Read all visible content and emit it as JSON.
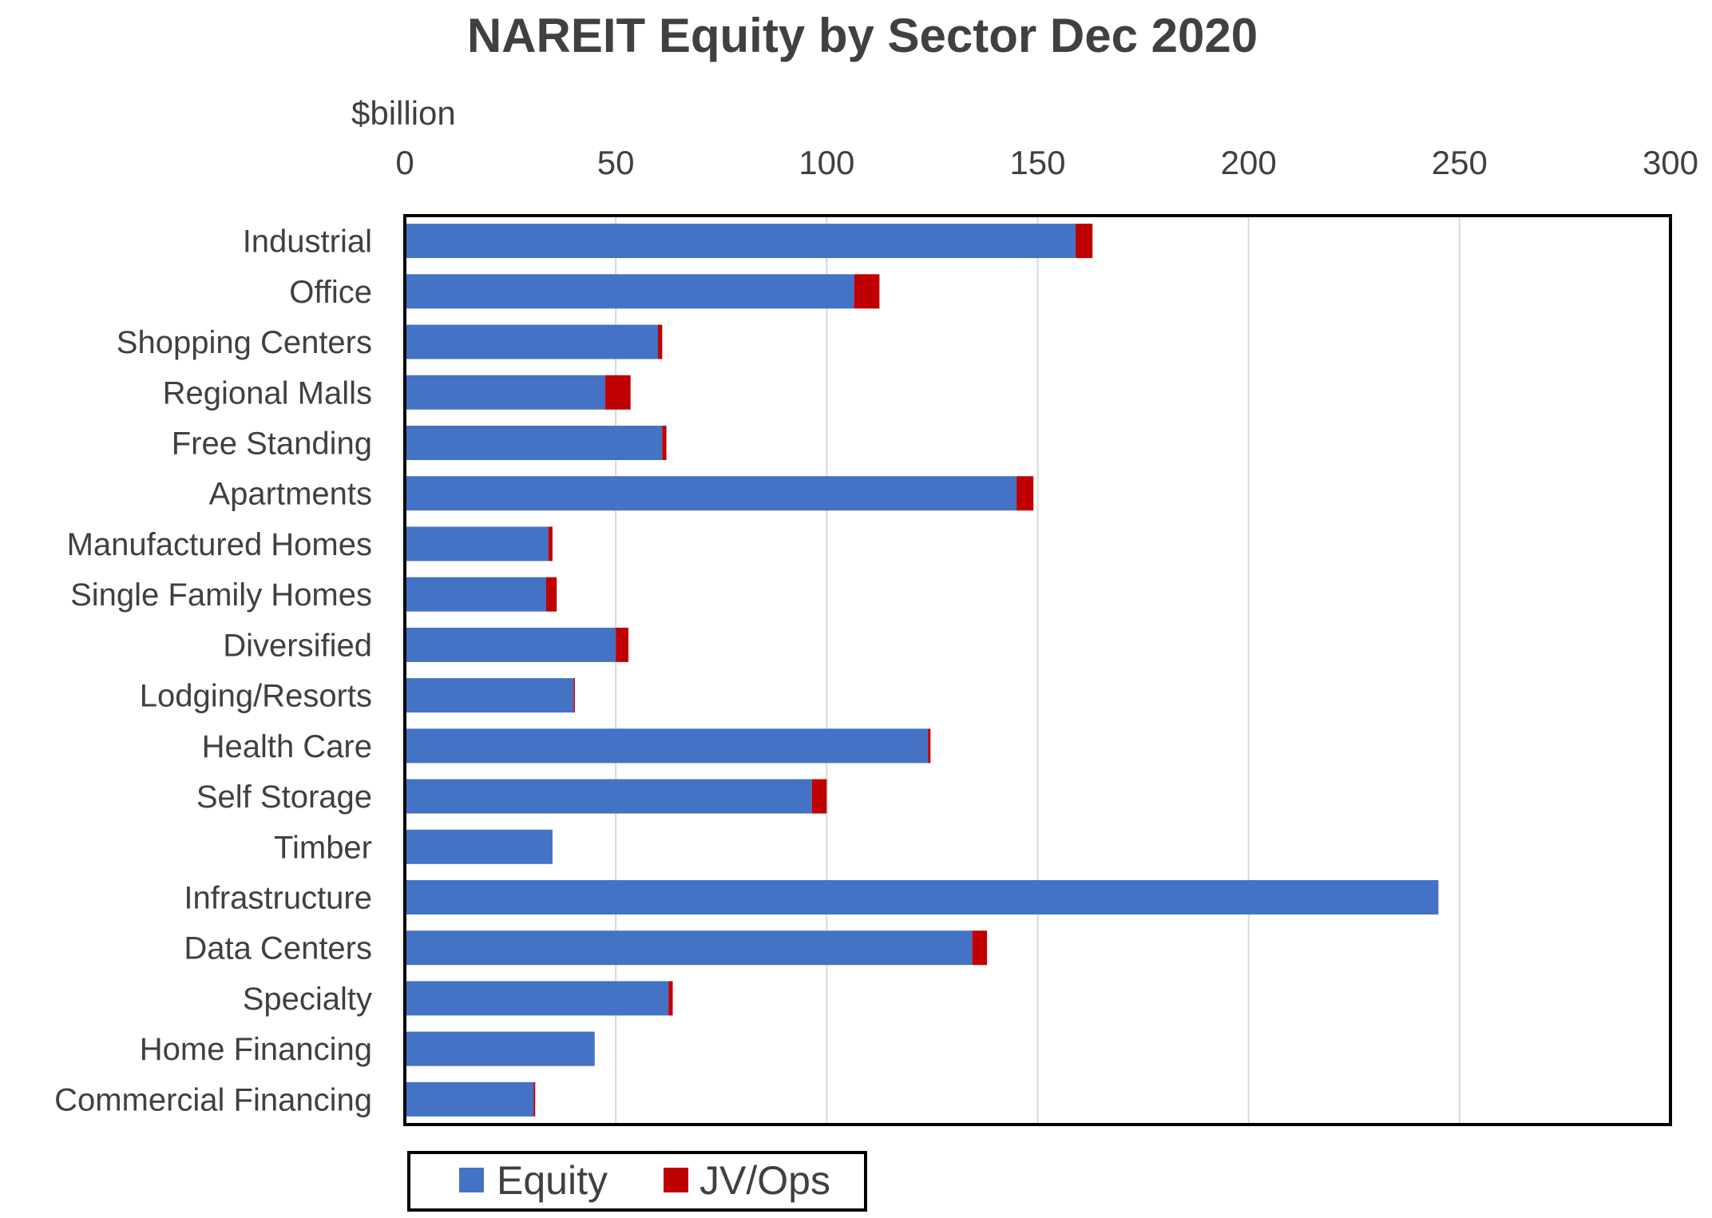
{
  "chart_data": {
    "type": "bar",
    "orientation": "horizontal",
    "stacked": true,
    "title": "NAREIT Equity by Sector Dec 2020",
    "xlabel": "$billion",
    "ylabel": "",
    "xlim": [
      0,
      300
    ],
    "x_ticks": [
      "0",
      "50",
      "100",
      "150",
      "200",
      "250",
      "300"
    ],
    "x_tick_values": [
      0,
      50,
      100,
      150,
      200,
      250,
      300
    ],
    "x_axis_position": "top",
    "grid": true,
    "legend_position": "bottom",
    "categories": [
      "Industrial",
      "Office",
      "Shopping Centers",
      "Regional Malls",
      "Free Standing",
      "Apartments",
      "Manufactured Homes",
      "Single Family Homes",
      "Diversified",
      "Lodging/Resorts",
      "Health Care",
      "Self Storage",
      "Timber",
      "Infrastructure",
      "Data Centers",
      "Specialty",
      "Home Financing",
      "Commercial Financing"
    ],
    "series": [
      {
        "name": "Equity",
        "color": "#4472C4",
        "values": [
          159,
          106.5,
          60,
          47.5,
          61,
          145,
          34,
          33.5,
          50,
          40,
          124,
          96.5,
          35,
          245,
          134.5,
          62.5,
          45,
          30.5
        ]
      },
      {
        "name": "JV/Ops",
        "color": "#C00000",
        "values": [
          4,
          6,
          1,
          6,
          1,
          4,
          1,
          2.5,
          3,
          0.3,
          0.6,
          3.5,
          0,
          0,
          3.5,
          1,
          0,
          0.4
        ]
      }
    ]
  }
}
